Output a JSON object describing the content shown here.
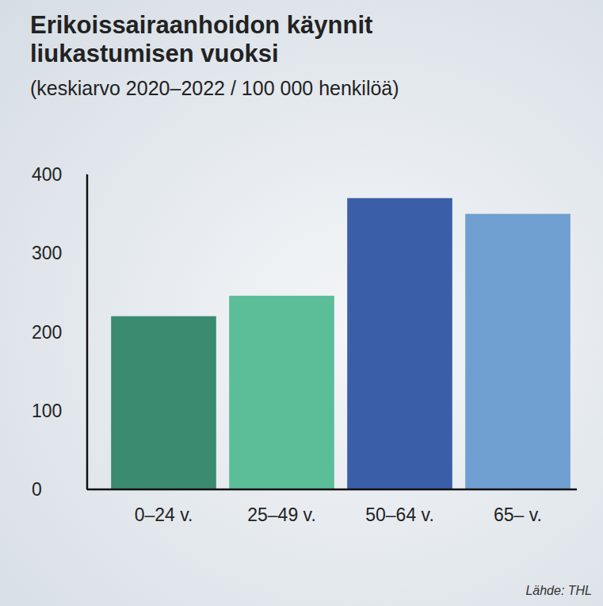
{
  "chart_data": {
    "type": "bar",
    "title": "Erikoissairaanhoidon käynnit liukastumisen vuoksi",
    "subtitle": "(keskiarvo 2020–2022 / 100 000 henkilöä)",
    "source": "Lähde: THL",
    "categories": [
      "0–24 v.",
      "25–49 v.",
      "50–64 v.",
      "65– v."
    ],
    "values": [
      220,
      246,
      370,
      350
    ],
    "colors": [
      "#3a8b6f",
      "#5cbd99",
      "#3a5ea8",
      "#6f9fd1"
    ],
    "ylim": [
      0,
      400
    ],
    "yticks": [
      0,
      100,
      200,
      300,
      400
    ],
    "grid": false
  }
}
